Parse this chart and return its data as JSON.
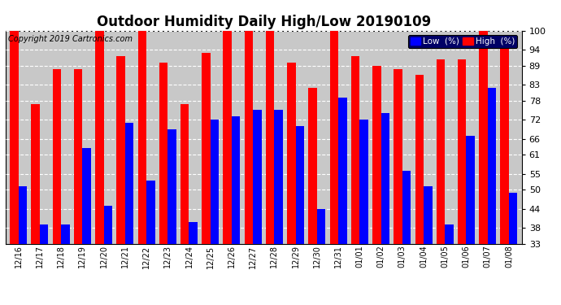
{
  "title": "Outdoor Humidity Daily High/Low 20190109",
  "copyright": "Copyright 2019 Cartronics.com",
  "categories": [
    "12/16",
    "12/17",
    "12/18",
    "12/19",
    "12/20",
    "12/21",
    "12/22",
    "12/23",
    "12/24",
    "12/25",
    "12/26",
    "12/27",
    "12/28",
    "12/29",
    "12/30",
    "12/31",
    "01/01",
    "01/02",
    "01/03",
    "01/04",
    "01/05",
    "01/06",
    "01/07",
    "01/08"
  ],
  "high_values": [
    100,
    77,
    88,
    88,
    100,
    92,
    100,
    90,
    77,
    93,
    100,
    100,
    100,
    90,
    82,
    100,
    92,
    89,
    88,
    86,
    91,
    91,
    100,
    96
  ],
  "low_values": [
    51,
    39,
    39,
    63,
    45,
    71,
    53,
    69,
    40,
    72,
    73,
    75,
    75,
    70,
    44,
    79,
    72,
    74,
    56,
    51,
    39,
    67,
    82,
    49
  ],
  "high_color": "#ff0000",
  "low_color": "#0000ff",
  "bg_color": "#ffffff",
  "plot_bg_color": "#c8c8c8",
  "grid_color": "#ffffff",
  "ylim_min": 33,
  "ylim_max": 100,
  "yticks": [
    33,
    38,
    44,
    50,
    55,
    61,
    66,
    72,
    78,
    83,
    89,
    94,
    100
  ],
  "title_fontsize": 12,
  "copyright_fontsize": 7,
  "tick_fontsize": 8,
  "xtick_fontsize": 7,
  "legend_low_label": "Low  (%)",
  "legend_high_label": "High  (%)",
  "legend_bg": "#000066",
  "bar_bottom": 33
}
